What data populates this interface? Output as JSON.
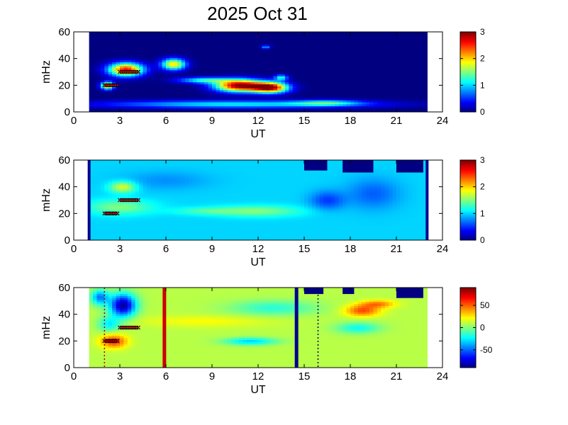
{
  "figure": {
    "title": "2025 Oct 31"
  },
  "chart_data": [
    {
      "type": "heatmap",
      "xlabel": "UT",
      "ylabel": "mHz",
      "xlim": [
        0,
        24
      ],
      "ylim": [
        0,
        60
      ],
      "x_ticks": [
        "0",
        "3",
        "6",
        "9",
        "12",
        "15",
        "18",
        "21",
        "24"
      ],
      "y_ticks": [
        "0",
        "20",
        "40",
        "60"
      ],
      "data_extent_x": [
        1,
        23
      ],
      "colormap": "jet",
      "clim": [
        0,
        3
      ],
      "colorbar_ticks": [
        "0",
        "1",
        "2",
        "3"
      ],
      "background_value": 0,
      "features": [
        {
          "x": 3.4,
          "y": 32,
          "sx": 0.8,
          "sy": 3.5,
          "value": 2.6
        },
        {
          "x": 6.5,
          "y": 36,
          "sx": 0.55,
          "sy": 3,
          "value": 2.0
        },
        {
          "x": 10.8,
          "y": 20,
          "sx": 1.1,
          "sy": 3.2,
          "value": 3.0
        },
        {
          "x": 12.8,
          "y": 18.5,
          "sx": 0.8,
          "sy": 2.8,
          "value": 2.8
        },
        {
          "x": 2.2,
          "y": 20,
          "sx": 0.3,
          "sy": 2,
          "value": 2.2
        },
        {
          "x": 8.5,
          "y": 24,
          "sx": 1.2,
          "sy": 1.6,
          "value": 1.2
        },
        {
          "x": 13.5,
          "y": 26,
          "sx": 0.3,
          "sy": 1.5,
          "value": 1.2
        },
        {
          "x": 10.5,
          "y": 6,
          "sx": 6,
          "sy": 2,
          "value": 1.1
        },
        {
          "x": 16.5,
          "y": 7,
          "sx": 1.5,
          "sy": 1.5,
          "value": 0.9
        },
        {
          "x": 12.5,
          "y": 49,
          "sx": 0.2,
          "sy": 1,
          "value": 0.9
        }
      ],
      "markers": [
        {
          "x_start": 2.0,
          "x_end": 2.9,
          "y": 20,
          "color": "#cc0000"
        },
        {
          "x_start": 3.0,
          "x_end": 4.2,
          "y": 30,
          "color": "#cc0000"
        }
      ]
    },
    {
      "type": "heatmap",
      "xlabel": "UT",
      "ylabel": "mHz",
      "xlim": [
        0,
        24
      ],
      "ylim": [
        0,
        60
      ],
      "x_ticks": [
        "0",
        "3",
        "6",
        "9",
        "12",
        "15",
        "18",
        "21",
        "24"
      ],
      "y_ticks": [
        "0",
        "20",
        "40",
        "60"
      ],
      "data_extent_x": [
        1,
        23
      ],
      "colormap": "jet",
      "clim": [
        0,
        3
      ],
      "colorbar_ticks": [
        "0",
        "1",
        "2",
        "3"
      ],
      "background_value": 1.0,
      "edge_lines": [
        1,
        23
      ],
      "features": [
        {
          "x": 3.2,
          "y": 40,
          "sx": 0.6,
          "sy": 3,
          "value": 1.8
        },
        {
          "x": 3.0,
          "y": 25,
          "sx": 1.5,
          "sy": 4,
          "value": 1.5
        },
        {
          "x": 12.0,
          "y": 22,
          "sx": 2.0,
          "sy": 3,
          "value": 1.5
        },
        {
          "x": 8.5,
          "y": 22,
          "sx": 1.5,
          "sy": 2,
          "value": 1.3
        },
        {
          "x": 16.5,
          "y": 30,
          "sx": 0.8,
          "sy": 5,
          "value": 0.55
        },
        {
          "x": 19.5,
          "y": 35,
          "sx": 1.2,
          "sy": 8,
          "value": 0.65
        },
        {
          "x": 6.0,
          "y": 45,
          "sx": 2.0,
          "sy": 5,
          "value": 0.8
        }
      ],
      "gaps": [
        {
          "x0": 15.0,
          "x1": 16.5,
          "y0": 53
        },
        {
          "x0": 17.5,
          "x1": 19.5,
          "y0": 51
        },
        {
          "x0": 21.0,
          "x1": 22.8,
          "y0": 51
        }
      ],
      "markers": [
        {
          "x_start": 2.0,
          "x_end": 2.9,
          "y": 20,
          "color": "#cc0000"
        },
        {
          "x_start": 3.0,
          "x_end": 4.2,
          "y": 30,
          "color": "#cc0000"
        }
      ]
    },
    {
      "type": "heatmap",
      "xlabel": "UT",
      "ylabel": "mHz",
      "xlim": [
        0,
        24
      ],
      "ylim": [
        0,
        60
      ],
      "x_ticks": [
        "0",
        "3",
        "6",
        "9",
        "12",
        "15",
        "18",
        "21",
        "24"
      ],
      "y_ticks": [
        "0",
        "20",
        "40",
        "60"
      ],
      "data_extent_x": [
        1,
        23
      ],
      "colormap": "jet",
      "clim": [
        -90,
        90
      ],
      "colorbar_ticks": [
        "-50",
        "0",
        "50"
      ],
      "colorbar_tick_values": [
        -50,
        0,
        50
      ],
      "background_value": 10,
      "features": [
        {
          "x": 3.2,
          "y": 47,
          "sx": 0.6,
          "sy": 6,
          "value": -85
        },
        {
          "x": 1.7,
          "y": 53,
          "sx": 0.4,
          "sy": 4,
          "value": -45
        },
        {
          "x": 2.6,
          "y": 20,
          "sx": 0.6,
          "sy": 3.5,
          "value": 60
        },
        {
          "x": 2.3,
          "y": 33,
          "sx": 0.5,
          "sy": 4,
          "value": -25
        },
        {
          "x": 11.5,
          "y": 20,
          "sx": 1.2,
          "sy": 2,
          "value": -30
        },
        {
          "x": 18.8,
          "y": 43,
          "sx": 0.8,
          "sy": 3,
          "value": 55
        },
        {
          "x": 19.8,
          "y": 48,
          "sx": 0.8,
          "sy": 2,
          "value": 45
        },
        {
          "x": 18.5,
          "y": 30,
          "sx": 1.0,
          "sy": 3,
          "value": -20
        },
        {
          "x": 8.5,
          "y": 35,
          "sx": 3.0,
          "sy": 3,
          "value": 22
        },
        {
          "x": 13.0,
          "y": 45,
          "sx": 2.0,
          "sy": 4,
          "value": -15
        }
      ],
      "gaps": [
        {
          "x0": 15.0,
          "x1": 16.3,
          "y0": 56
        },
        {
          "x0": 17.4,
          "x1": 18.2,
          "y0": 56
        },
        {
          "x0": 21.0,
          "x1": 22.8,
          "y0": 53
        }
      ],
      "vertical_lines": [
        {
          "x": 5.9,
          "color": "#cc0000"
        },
        {
          "x": 14.5,
          "color": "#00008f"
        }
      ],
      "dotted_lines": [
        {
          "x": 2.0,
          "color": "#aa0000"
        },
        {
          "x": 15.9,
          "color": "#00005f"
        }
      ],
      "markers": [
        {
          "x_start": 2.0,
          "x_end": 2.9,
          "y": 20,
          "color": "#cc0000"
        },
        {
          "x_start": 3.0,
          "x_end": 4.2,
          "y": 30,
          "color": "#cc0000"
        }
      ]
    }
  ]
}
